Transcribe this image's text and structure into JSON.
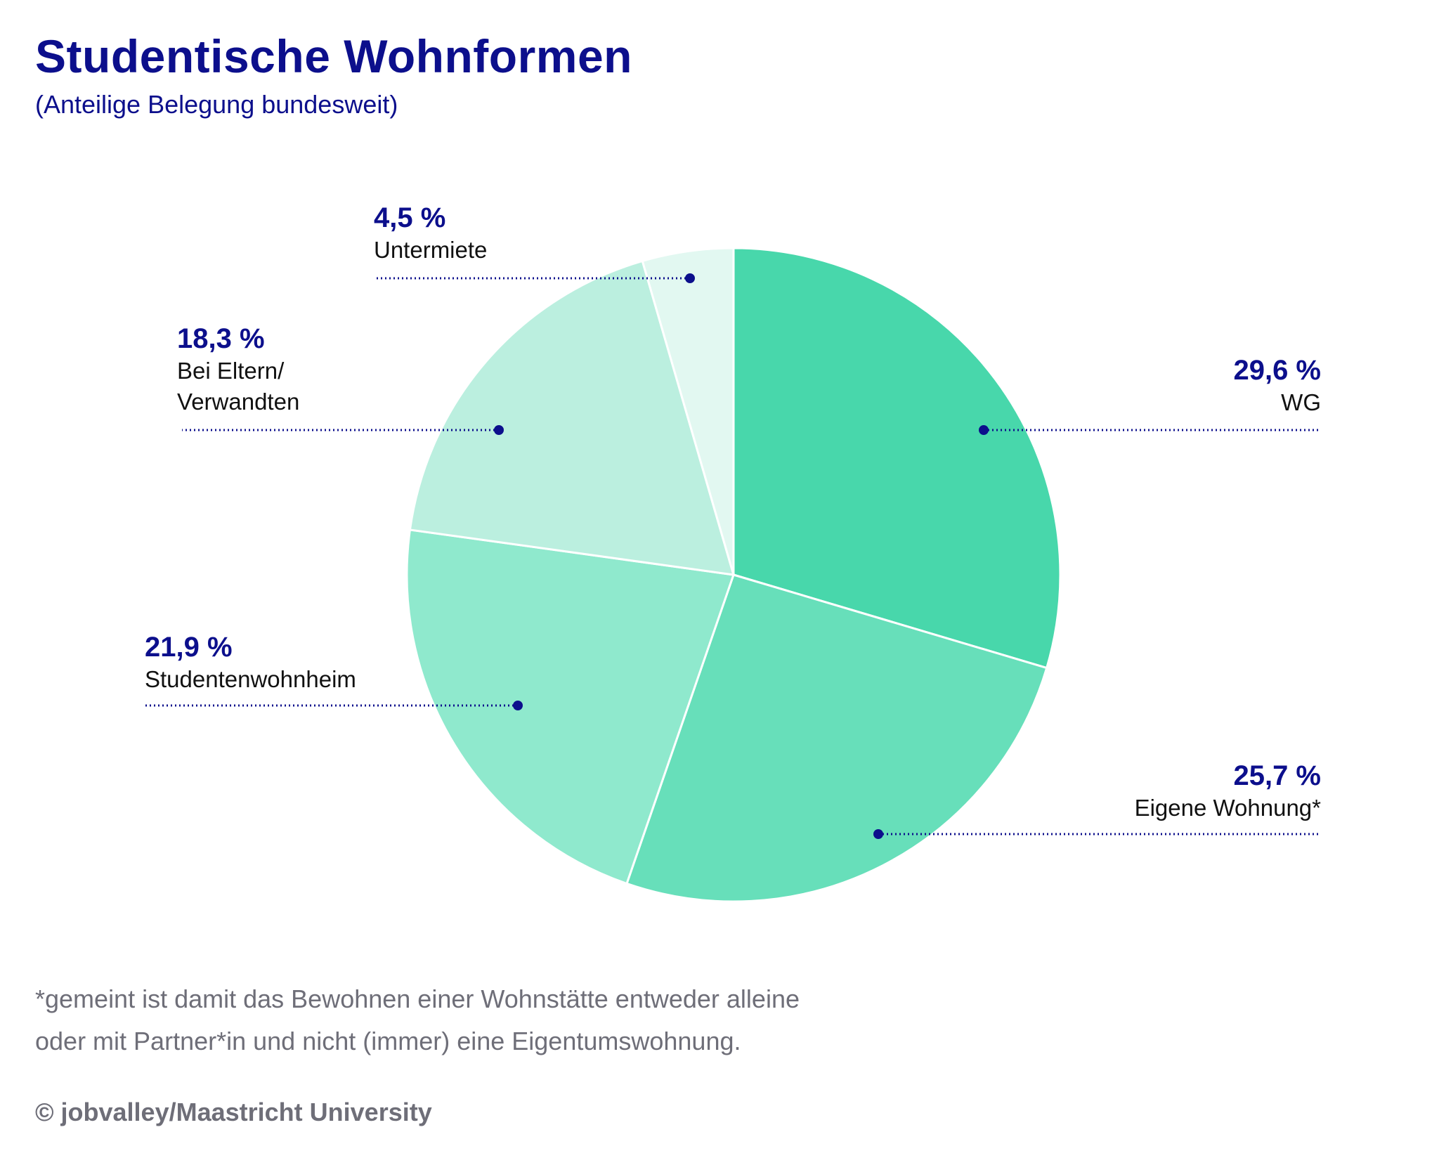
{
  "header": {
    "title": "Studentische Wohnformen",
    "subtitle": "(Anteilige Belegung bundesweit)"
  },
  "chart_data": {
    "type": "pie",
    "title": "Studentische Wohnformen",
    "subtitle": "(Anteilige Belegung bundesweit)",
    "start": "12 o'clock",
    "direction": "clockwise",
    "slices": [
      {
        "key": "wg",
        "label": "WG",
        "value": 29.6,
        "value_label": "29,6 %",
        "color": "#48d7ab"
      },
      {
        "key": "eigene",
        "label": "Eigene Wohnung*",
        "value": 25.7,
        "value_label": "25,7 %",
        "color": "#67dfba"
      },
      {
        "key": "wohnheim",
        "label": "Studentenwohnheim",
        "value": 21.9,
        "value_label": "21,9 %",
        "color": "#8fe9cd"
      },
      {
        "key": "eltern",
        "label": "Bei Eltern/ Verwandten",
        "label_lines": [
          "Bei Eltern/",
          "Verwandten"
        ],
        "value": 18.3,
        "value_label": "18,3 %",
        "color": "#bbefdf"
      },
      {
        "key": "untermiete",
        "label": "Untermiete",
        "value": 4.5,
        "value_label": "4,5 %",
        "color": "#e2f8f1"
      }
    ],
    "label_color": "#0c0f8c",
    "slice_separator_color": "#ffffff"
  },
  "footnote": {
    "line1": "*gemeint ist damit das Bewohnen einer Wohnstätte entweder alleine",
    "line2": "oder mit Partner*in und nicht (immer) eine Eigentumswohnung."
  },
  "credit": "© jobvalley/Maastricht University"
}
